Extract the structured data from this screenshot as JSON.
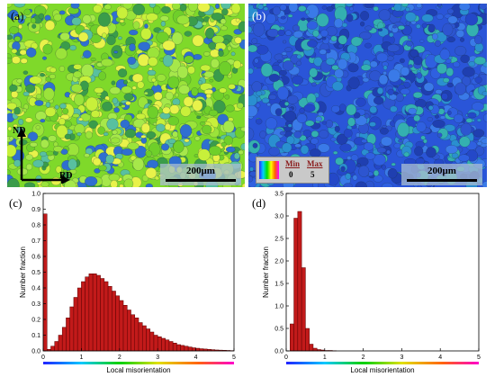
{
  "panels": {
    "a": {
      "label": "(a)",
      "scale_text": "200μm",
      "axis_y": "ND",
      "axis_x": "RD"
    },
    "b": {
      "label": "(b)",
      "scale_text": "200μm",
      "legend": {
        "min_label": "Min",
        "min_value": "0",
        "max_label": "Max",
        "max_value": "5"
      }
    },
    "c": {
      "label": "(c)"
    },
    "d": {
      "label": "(d)"
    }
  },
  "colors": {
    "bar_fill": "#c21a1a",
    "bar_stroke": "#5a0000",
    "map_a_base": "#7fd92a",
    "map_b_base": "#2a55d8"
  },
  "chart_data": [
    {
      "type": "bar",
      "ylabel": "Number fraction",
      "xlabel": "Local misorientation",
      "xlim": [
        0,
        5
      ],
      "ylim": [
        0,
        1.0
      ],
      "xticks": [
        "0",
        "1",
        "2",
        "3",
        "4",
        "5"
      ],
      "yticks": [
        "0.0",
        "0.1",
        "0.2",
        "0.3",
        "0.4",
        "0.5",
        "0.6",
        "0.7",
        "0.8",
        "0.9",
        "1.0"
      ],
      "bin_width": 0.1,
      "x": [
        0.05,
        0.15,
        0.25,
        0.35,
        0.45,
        0.55,
        0.65,
        0.75,
        0.85,
        0.95,
        1.05,
        1.15,
        1.25,
        1.35,
        1.45,
        1.55,
        1.65,
        1.75,
        1.85,
        1.95,
        2.05,
        2.15,
        2.25,
        2.35,
        2.45,
        2.55,
        2.65,
        2.75,
        2.85,
        2.95,
        3.05,
        3.15,
        3.25,
        3.35,
        3.45,
        3.55,
        3.65,
        3.75,
        3.85,
        3.95,
        4.05,
        4.15,
        4.25,
        4.35,
        4.45,
        4.55,
        4.65,
        4.75,
        4.85,
        4.95
      ],
      "values": [
        0.87,
        0.01,
        0.03,
        0.06,
        0.1,
        0.15,
        0.21,
        0.28,
        0.34,
        0.4,
        0.44,
        0.47,
        0.49,
        0.49,
        0.48,
        0.46,
        0.44,
        0.41,
        0.38,
        0.35,
        0.32,
        0.29,
        0.26,
        0.23,
        0.21,
        0.18,
        0.16,
        0.14,
        0.12,
        0.1,
        0.09,
        0.08,
        0.07,
        0.06,
        0.05,
        0.04,
        0.035,
        0.03,
        0.025,
        0.02,
        0.017,
        0.014,
        0.012,
        0.01,
        0.008,
        0.006,
        0.005,
        0.004,
        0.003,
        0.002
      ]
    },
    {
      "type": "bar",
      "ylabel": "Number fraction",
      "xlabel": "Local misorientation",
      "xlim": [
        0,
        5
      ],
      "ylim": [
        0,
        3.5
      ],
      "xticks": [
        "0",
        "1",
        "2",
        "3",
        "4",
        "5"
      ],
      "yticks": [
        "0.0",
        "0.5",
        "1.0",
        "1.5",
        "2.0",
        "2.5",
        "3.0",
        "3.5"
      ],
      "bin_width": 0.1,
      "x": [
        0.15,
        0.25,
        0.35,
        0.45,
        0.55,
        0.65,
        0.75,
        0.85,
        0.95,
        1.05,
        1.15,
        1.25
      ],
      "values": [
        0.6,
        2.95,
        3.1,
        1.85,
        0.5,
        0.15,
        0.06,
        0.03,
        0.02,
        0.01,
        0.01,
        0.005
      ]
    }
  ]
}
